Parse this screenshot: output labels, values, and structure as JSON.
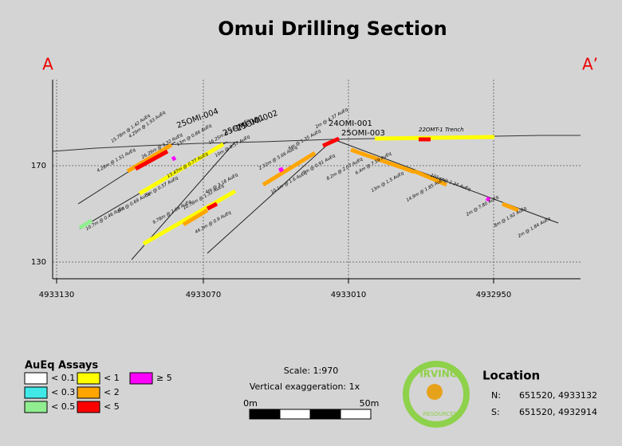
{
  "header": {
    "title": "Omui Drilling Section",
    "left_label": "A",
    "right_label": "A’"
  },
  "axes": {
    "elevation_ticks": [
      "170",
      "130"
    ],
    "northing_ticks": [
      "4933130",
      "4933070",
      "4933010",
      "4932950"
    ]
  },
  "holes": [
    "25OMI-004",
    "25OMI-001",
    "25OMI-002",
    "24OMI-001",
    "25OMI-003"
  ],
  "trench": "22OMT-1 Trench",
  "intercepts": [
    "15.78m @ 1.42 AuEq",
    "4.29m @ 1.93 AuEq",
    "4.28m @ 1.51 AuEq",
    "26.29m @ 3.32 AuEq",
    "10.7m @ 0.46 AuEq",
    "5m @ 0.69 AuEq",
    "5m @ 0.57 AuEq",
    "13m @ 0.86 AuEq",
    "13.47m @ 0.77 AuEq",
    "16.25m @ 0.92 AuEq",
    "10m @ 0.57 AuEq",
    "9.78m @ 2.64 AuEq",
    "10.78m @ 1.32 AuEq",
    "4m @ 3.18 AuEq",
    "44.3m @ 0.9 AuEq",
    "2.32m @ 5.66 AuEq",
    "10.1m @ 1.6 AuEq",
    "6m @ 1.35 AuEq",
    "7m @ 0.91 AuEq",
    "2m @ 4.37 AuEq",
    "8.2m @ 2.07 AuEq",
    "6.4m @ 7.59 AuEq",
    "13m @ 1.5 AuEq",
    "14.9m @ 1.85 AuEq",
    "101m @ 1.34 AuEq",
    "2m @ 7.80 AuEq",
    "8m @ 1.92 AuEq",
    "2m @ 1.84 AuEq"
  ],
  "legend": {
    "title": "AuEq Assays",
    "items": [
      {
        "label": "< 0.1",
        "color": "#ffffff"
      },
      {
        "label": "< 0.3",
        "color": "#40e8e8"
      },
      {
        "label": "< 0.5",
        "color": "#90ee90"
      },
      {
        "label": "< 1",
        "color": "#ffff00"
      },
      {
        "label": "< 2",
        "color": "#ffa500"
      },
      {
        "label": "< 5",
        "color": "#ff0000"
      },
      {
        "label": "≥ 5",
        "color": "#ff00ff"
      }
    ]
  },
  "scale": {
    "text": "Scale: 1:970",
    "exaggeration": "Vertical exaggeration: 1x",
    "start": "0m",
    "end": "50m"
  },
  "logo": {
    "name": "IRVING",
    "sub": "RESOURCES"
  },
  "location": {
    "title": "Location",
    "n_label": "N:",
    "n_value": "651520, 4933132",
    "s_label": "S:",
    "s_value": "651520, 4932914"
  }
}
